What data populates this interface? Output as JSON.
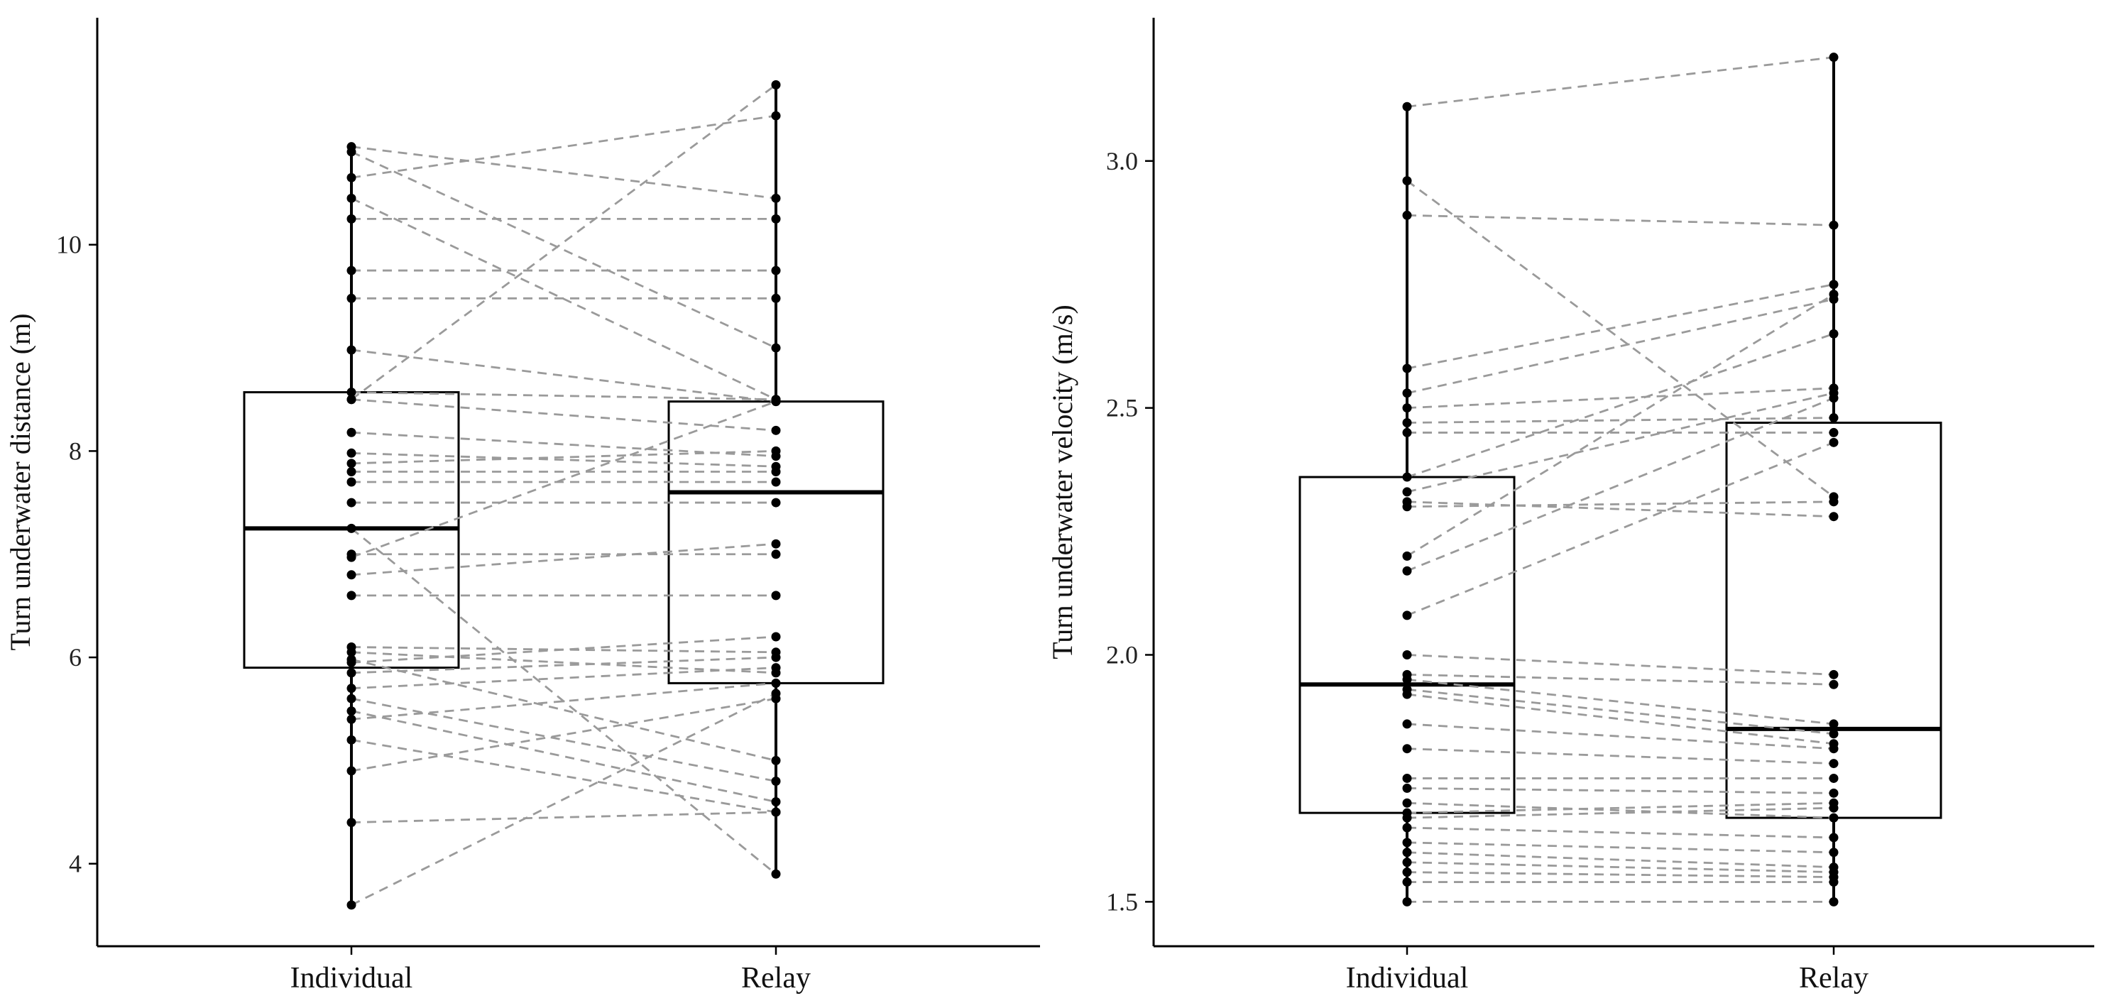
{
  "colors": {
    "axis": "#000000",
    "box": "#000000",
    "point": "#000000",
    "pair_line": "#9a9a9a",
    "background": "#ffffff"
  },
  "chart_data": [
    {
      "type": "box",
      "title": "",
      "xlabel": "",
      "ylabel": "Turn underwater distance (m)",
      "categories": [
        "Individual",
        "Relay"
      ],
      "ylim": [
        3.2,
        12.2
      ],
      "yticks": [
        4,
        6,
        8,
        10
      ],
      "tick_labels": [
        "4",
        "6",
        "8",
        "10"
      ],
      "boxes": [
        {
          "name": "Individual",
          "q1": 5.9,
          "median": 7.25,
          "q3": 8.57,
          "min": 3.6,
          "max": 10.95
        },
        {
          "name": "Relay",
          "q1": 5.75,
          "median": 7.6,
          "q3": 8.48,
          "min": 3.9,
          "max": 11.55
        }
      ],
      "pairs": [
        [
          10.95,
          10.45
        ],
        [
          10.9,
          9.0
        ],
        [
          10.65,
          11.25
        ],
        [
          10.45,
          8.5
        ],
        [
          10.25,
          10.25
        ],
        [
          9.75,
          9.75
        ],
        [
          9.48,
          9.48
        ],
        [
          8.98,
          8.48
        ],
        [
          8.57,
          8.5
        ],
        [
          8.5,
          8.2
        ],
        [
          8.18,
          7.95
        ],
        [
          7.98,
          7.85
        ],
        [
          7.88,
          8.0
        ],
        [
          7.8,
          7.8
        ],
        [
          7.7,
          7.7
        ],
        [
          7.5,
          7.5
        ],
        [
          7.0,
          7.0
        ],
        [
          6.97,
          8.48
        ],
        [
          6.8,
          7.1
        ],
        [
          6.6,
          6.6
        ],
        [
          6.1,
          6.05
        ],
        [
          6.05,
          5.85
        ],
        [
          5.98,
          5.0
        ],
        [
          5.95,
          6.2
        ],
        [
          5.85,
          6.0
        ],
        [
          5.7,
          5.9
        ],
        [
          5.6,
          4.8
        ],
        [
          5.48,
          4.6
        ],
        [
          5.4,
          5.75
        ],
        [
          5.2,
          4.5
        ],
        [
          4.9,
          5.6
        ],
        [
          4.4,
          4.5
        ],
        [
          3.6,
          5.65
        ],
        [
          8.5,
          11.55
        ],
        [
          7.25,
          3.9
        ]
      ]
    },
    {
      "type": "box",
      "title": "",
      "xlabel": "",
      "ylabel": "Turn underwater velocity (m/s)",
      "categories": [
        "Individual",
        "Relay"
      ],
      "ylim": [
        1.41,
        3.29
      ],
      "yticks": [
        1.5,
        2.0,
        2.5,
        3.0
      ],
      "tick_labels": [
        "1.5",
        "2.0",
        "2.5",
        "3.0"
      ],
      "boxes": [
        {
          "name": "Individual",
          "q1": 1.68,
          "median": 1.94,
          "q3": 2.36,
          "min": 1.5,
          "max": 3.11
        },
        {
          "name": "Relay",
          "q1": 1.67,
          "median": 1.85,
          "q3": 2.47,
          "min": 1.5,
          "max": 3.21
        }
      ],
      "pairs": [
        [
          3.11,
          3.21
        ],
        [
          2.96,
          2.32
        ],
        [
          2.89,
          2.87
        ],
        [
          2.58,
          2.75
        ],
        [
          2.53,
          2.72
        ],
        [
          2.5,
          2.54
        ],
        [
          2.47,
          2.48
        ],
        [
          2.45,
          2.45
        ],
        [
          2.36,
          2.65
        ],
        [
          2.33,
          2.53
        ],
        [
          2.31,
          2.28
        ],
        [
          2.3,
          2.31
        ],
        [
          2.2,
          2.73
        ],
        [
          2.17,
          2.52
        ],
        [
          2.08,
          2.43
        ],
        [
          2.0,
          1.96
        ],
        [
          1.96,
          1.94
        ],
        [
          1.95,
          1.86
        ],
        [
          1.93,
          1.84
        ],
        [
          1.92,
          1.82
        ],
        [
          1.86,
          1.81
        ],
        [
          1.81,
          1.78
        ],
        [
          1.75,
          1.75
        ],
        [
          1.73,
          1.72
        ],
        [
          1.7,
          1.67
        ],
        [
          1.68,
          1.7
        ],
        [
          1.67,
          1.69
        ],
        [
          1.65,
          1.63
        ],
        [
          1.62,
          1.6
        ],
        [
          1.6,
          1.57
        ],
        [
          1.58,
          1.56
        ],
        [
          1.56,
          1.55
        ],
        [
          1.54,
          1.54
        ],
        [
          1.5,
          1.5
        ]
      ]
    }
  ]
}
